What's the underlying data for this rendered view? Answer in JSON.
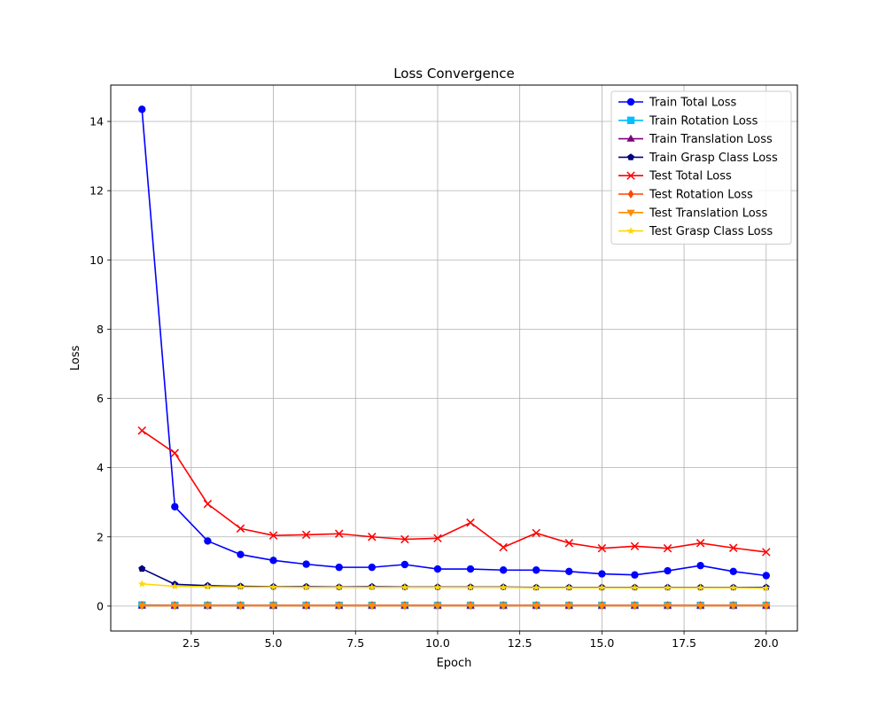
{
  "chart_data": {
    "type": "line",
    "title": "Loss Convergence",
    "xlabel": "Epoch",
    "ylabel": "Loss",
    "xlim": [
      0.05,
      20.95
    ],
    "ylim": [
      -0.72,
      15.05
    ],
    "grid": true,
    "legend_placement": "top-right",
    "x_ticks": [
      2.5,
      5.0,
      7.5,
      10.0,
      12.5,
      15.0,
      17.5,
      20.0
    ],
    "x_tick_labels": [
      "2.5",
      "5.0",
      "7.5",
      "10.0",
      "12.5",
      "15.0",
      "17.5",
      "20.0"
    ],
    "y_ticks": [
      0,
      2,
      4,
      6,
      8,
      10,
      12,
      14
    ],
    "y_tick_labels": [
      "0",
      "2",
      "4",
      "6",
      "8",
      "10",
      "12",
      "14"
    ],
    "x": [
      1,
      2,
      3,
      4,
      5,
      6,
      7,
      8,
      9,
      10,
      11,
      12,
      13,
      14,
      15,
      16,
      17,
      18,
      19,
      20
    ],
    "series": [
      {
        "name": "Train Total Loss",
        "color": "#0000ff",
        "marker": "circle",
        "values": [
          14.35,
          2.87,
          1.88,
          1.49,
          1.32,
          1.21,
          1.12,
          1.12,
          1.2,
          1.07,
          1.07,
          1.04,
          1.04,
          1.0,
          0.93,
          0.9,
          1.02,
          1.17,
          1.0,
          0.88
        ]
      },
      {
        "name": "Train Rotation Loss",
        "color": "#00bfff",
        "marker": "square",
        "values": [
          0.03,
          0.02,
          0.02,
          0.02,
          0.02,
          0.02,
          0.02,
          0.02,
          0.02,
          0.02,
          0.02,
          0.02,
          0.02,
          0.02,
          0.02,
          0.02,
          0.02,
          0.02,
          0.02,
          0.02
        ]
      },
      {
        "name": "Train Translation Loss",
        "color": "#800080",
        "marker": "triangle-up",
        "values": [
          0.01,
          0.01,
          0.01,
          0.01,
          0.01,
          0.01,
          0.01,
          0.01,
          0.01,
          0.01,
          0.01,
          0.01,
          0.01,
          0.01,
          0.01,
          0.01,
          0.01,
          0.01,
          0.01,
          0.01
        ]
      },
      {
        "name": "Train Grasp Class Loss",
        "color": "#000080",
        "marker": "pentagon",
        "values": [
          1.08,
          0.63,
          0.59,
          0.57,
          0.56,
          0.56,
          0.55,
          0.56,
          0.55,
          0.55,
          0.55,
          0.55,
          0.54,
          0.54,
          0.54,
          0.54,
          0.54,
          0.54,
          0.54,
          0.54
        ]
      },
      {
        "name": "Test Total Loss",
        "color": "#ff0000",
        "marker": "x",
        "values": [
          5.07,
          4.42,
          2.95,
          2.24,
          2.04,
          2.06,
          2.09,
          2.0,
          1.93,
          1.96,
          2.41,
          1.7,
          2.11,
          1.82,
          1.67,
          1.73,
          1.67,
          1.82,
          1.68,
          1.56
        ]
      },
      {
        "name": "Test Rotation Loss",
        "color": "#ff4500",
        "marker": "diamond",
        "values": [
          0.02,
          0.02,
          0.02,
          0.02,
          0.02,
          0.02,
          0.02,
          0.02,
          0.02,
          0.02,
          0.02,
          0.02,
          0.02,
          0.02,
          0.02,
          0.02,
          0.02,
          0.02,
          0.02,
          0.02
        ]
      },
      {
        "name": "Test Translation Loss",
        "color": "#ff8c00",
        "marker": "triangle-down",
        "values": [
          0.01,
          0.01,
          0.01,
          0.01,
          0.01,
          0.01,
          0.01,
          0.01,
          0.01,
          0.01,
          0.01,
          0.01,
          0.01,
          0.01,
          0.01,
          0.01,
          0.01,
          0.01,
          0.01,
          0.01
        ]
      },
      {
        "name": "Test Grasp Class Loss",
        "color": "#ffd700",
        "marker": "star",
        "values": [
          0.64,
          0.57,
          0.56,
          0.55,
          0.55,
          0.54,
          0.54,
          0.54,
          0.54,
          0.54,
          0.54,
          0.54,
          0.53,
          0.53,
          0.53,
          0.53,
          0.53,
          0.53,
          0.53,
          0.52
        ]
      }
    ]
  }
}
